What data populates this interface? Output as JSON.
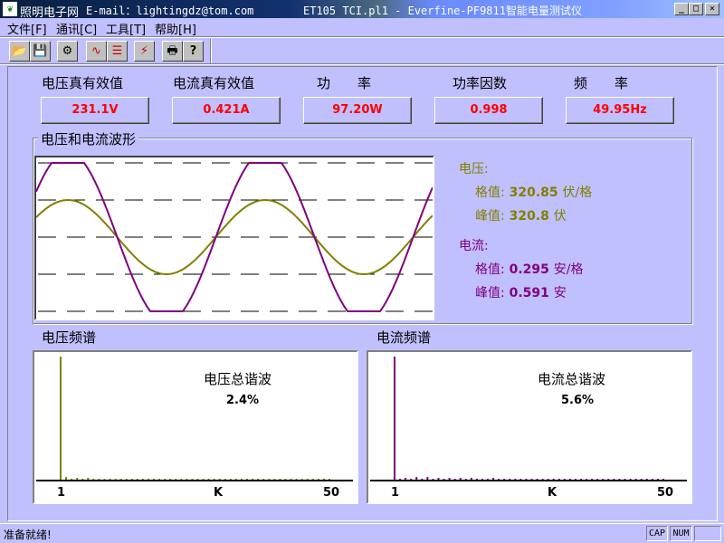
{
  "window": {
    "brand": "照明电子网",
    "email": "E-mail：lightingdz@tom.com",
    "title": "ET105 TCI.pl1 - Everfine-PF9811智能电量测试仪",
    "min": "_",
    "max": "□",
    "close": "✕"
  },
  "menu": [
    {
      "label": "文件[F]"
    },
    {
      "label": "通讯[C]"
    },
    {
      "label": "工具[T]"
    },
    {
      "label": "帮助[H]"
    }
  ],
  "toolbar": [
    {
      "icon": "open-folder-icon",
      "glyph": "📂"
    },
    {
      "icon": "save-icon",
      "glyph": "💾"
    },
    {
      "icon": "connect-icon",
      "glyph": "⚙"
    },
    {
      "icon": "waveform-icon",
      "glyph": "∿"
    },
    {
      "icon": "harmonic-table-icon",
      "glyph": "☰"
    },
    {
      "icon": "calibrate-icon",
      "glyph": "⚡"
    },
    {
      "icon": "print-icon",
      "glyph": "🖶"
    },
    {
      "icon": "help-icon",
      "glyph": "?"
    }
  ],
  "measurements": [
    {
      "label": "电压真有效值",
      "value": "231.1V"
    },
    {
      "label": "电流真有效值",
      "value": "0.421A"
    },
    {
      "label": "功　　率",
      "value": "97.20W"
    },
    {
      "label": "功率因数",
      "value": "0.998"
    },
    {
      "label": "频　　率",
      "value": "49.95Hz"
    }
  ],
  "waveform": {
    "title": "电压和电流波形",
    "voltage": {
      "heading": "电压:",
      "scale_label": "格值:",
      "scale": "320.85",
      "scale_unit": "伏/格",
      "peak_label": "峰值:",
      "peak": "320.8",
      "peak_unit": "伏",
      "color": "#808000"
    },
    "current": {
      "heading": "电流:",
      "scale_label": "格值:",
      "scale": "0.295",
      "scale_unit": "安/格",
      "peak_label": "峰值:",
      "peak": "0.591",
      "peak_unit": "安",
      "color": "#800080"
    }
  },
  "spectrum": {
    "voltage": {
      "title": "电压频谱",
      "thd_label": "电压总谐波",
      "thd": "2.4%",
      "x_start": "1",
      "x_label": "K",
      "x_end": "50",
      "color": "#808000",
      "levels": [
        100,
        1.5,
        0.5,
        1,
        0.5,
        1,
        0.5,
        0.5,
        0.5,
        0.5,
        0.5,
        0.5,
        0.5,
        0.5,
        0.5,
        0.5,
        0.5,
        0.5,
        0.5,
        0.5,
        0.5,
        0.5,
        0.5,
        0.5,
        0.5,
        0.5,
        0.5,
        0.5,
        0.5,
        0.5,
        0.5,
        0.5,
        0.5,
        0.5,
        0.5,
        0.5,
        0.5,
        0.5,
        0.5,
        0.5,
        0.5,
        0.5,
        0.5,
        0.5,
        0.5,
        0.5,
        0.5,
        0.5,
        0.5,
        0.5
      ]
    },
    "current": {
      "title": "电流频谱",
      "thd_label": "电流总谐波",
      "thd": "5.6%",
      "x_start": "1",
      "x_label": "K",
      "x_end": "50",
      "color": "#800080",
      "levels": [
        100,
        0.5,
        1,
        0.5,
        1.5,
        0.5,
        1.5,
        0.5,
        1,
        0.5,
        1,
        0.5,
        1,
        0.5,
        1,
        0.5,
        0.5,
        0.5,
        1,
        0.5,
        0.5,
        0.5,
        0.5,
        0.5,
        0.5,
        0.5,
        0.5,
        0.5,
        0.5,
        0.5,
        0.5,
        0.5,
        0.5,
        0.5,
        0.5,
        0.5,
        0.5,
        0.5,
        0.5,
        0.5,
        0.5,
        0.5,
        0.5,
        0.5,
        0.5,
        0.5,
        0.5,
        0.5,
        0.5,
        0.5
      ]
    }
  },
  "status": {
    "text": "准备就绪!",
    "cap": "CAP",
    "num": "NUM"
  }
}
